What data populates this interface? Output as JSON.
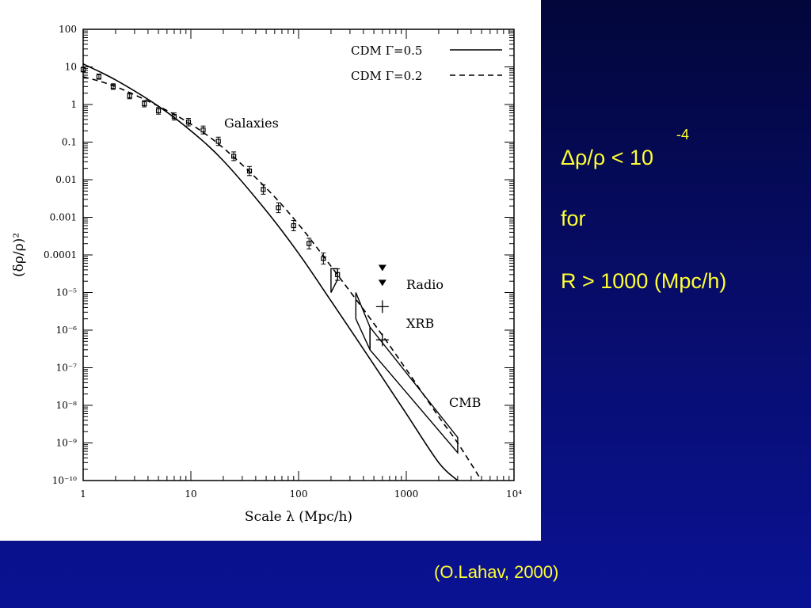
{
  "slide": {
    "statement": {
      "main": "Δρ/ρ < 10",
      "exponent": "-4",
      "line2": "for",
      "line3": "R > 1000 (Mpc/h)"
    },
    "citation": "(O.Lahav, 2000)"
  },
  "chart_data": {
    "type": "line",
    "xscale": "log",
    "yscale": "log",
    "xlim": [
      1,
      10000
    ],
    "ylim": [
      1e-10,
      100
    ],
    "xlabel": "Scale λ (Mpc/h)",
    "ylabel": "(δρ/ρ)²",
    "x_ticks": [
      1,
      10,
      100,
      1000,
      10000
    ],
    "x_tick_labels": [
      "1",
      "10",
      "100",
      "1000",
      "10⁴"
    ],
    "y_ticks": [
      100,
      10,
      1,
      0.1,
      0.01,
      0.001,
      0.0001,
      1e-05,
      1e-06,
      1e-07,
      1e-08,
      1e-09,
      1e-10
    ],
    "y_tick_labels": [
      "100",
      "10",
      "1",
      "0.1",
      "0.01",
      "0.001",
      "0.0001",
      "10⁻⁵",
      "10⁻⁶",
      "10⁻⁷",
      "10⁻⁸",
      "10⁻⁹",
      "10⁻¹⁰"
    ],
    "legend_position": "top-right",
    "series": [
      {
        "name": "CDM Γ=0.5",
        "style": "solid",
        "x": [
          1,
          2,
          5,
          10,
          20,
          50,
          100,
          200,
          500,
          1000,
          2000,
          3000
        ],
        "y": [
          12,
          4.5,
          0.9,
          0.2,
          0.032,
          0.0015,
          0.00011,
          6e-06,
          1.2e-07,
          6e-09,
          3e-10,
          1e-10
        ]
      },
      {
        "name": "CDM Γ=0.2",
        "style": "dashed",
        "x": [
          1,
          2,
          5,
          10,
          20,
          50,
          100,
          200,
          500,
          1000,
          2000,
          3000,
          5000
        ],
        "y": [
          5.5,
          3,
          0.9,
          0.3,
          0.07,
          0.006,
          0.00065,
          5e-05,
          1.5e-06,
          9e-08,
          5e-09,
          1e-09,
          1e-10
        ]
      }
    ],
    "points": {
      "name": "Galaxies",
      "x": [
        1,
        1.4,
        1.9,
        2.7,
        3.7,
        5,
        7,
        9.5,
        13,
        18,
        25,
        35,
        47,
        65,
        90,
        125,
        170,
        230
      ],
      "y": [
        8.5,
        5.5,
        3,
        1.7,
        1.05,
        0.68,
        0.48,
        0.34,
        0.21,
        0.105,
        0.042,
        0.017,
        0.0055,
        0.0018,
        0.0006,
        0.0002,
        8e-05,
        3e-05
      ]
    },
    "boxes": [
      {
        "name": "galaxies-box",
        "polygon": [
          [
            200,
            4.3e-05
          ],
          [
            200,
            1e-05
          ],
          [
            230,
            2.2e-05
          ],
          [
            230,
            4.3e-05
          ]
        ]
      },
      {
        "name": "xrb-box",
        "polygon": [
          [
            340,
            1e-05
          ],
          [
            340,
            2e-06
          ],
          [
            460,
            3e-07
          ],
          [
            460,
            1.2e-06
          ]
        ]
      },
      {
        "name": "cmb-box",
        "polygon": [
          [
            460,
            1.2e-06
          ],
          [
            460,
            3e-07
          ],
          [
            3000,
            5.5e-10
          ],
          [
            3000,
            1.4e-09
          ]
        ]
      }
    ],
    "radio_markers": {
      "x": [
        600,
        600
      ],
      "y": [
        4.5e-05,
        1.8e-05
      ]
    },
    "xrb_markers": {
      "x": [
        600,
        600
      ],
      "y": [
        4.2e-06,
        5.5e-07
      ]
    },
    "annotations": [
      "Galaxies",
      "Radio",
      "XRB",
      "CMB"
    ]
  }
}
